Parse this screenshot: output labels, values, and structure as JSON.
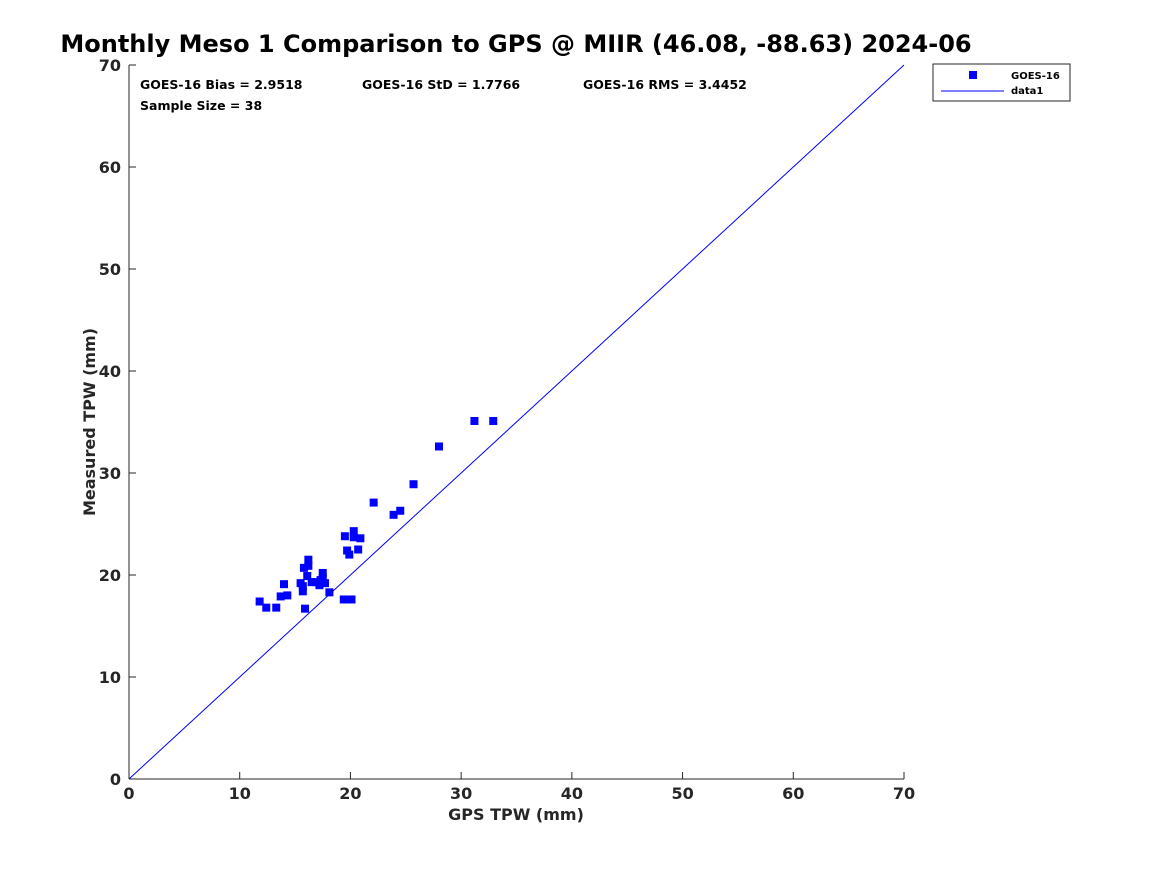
{
  "chart_data": {
    "type": "scatter",
    "title": "Monthly Meso 1 Comparison to GPS @ MIIR (46.08, -88.63) 2024-06",
    "xlabel": "GPS TPW (mm)",
    "ylabel": "Measured TPW (mm)",
    "xlim": [
      0,
      70
    ],
    "ylim": [
      0,
      70
    ],
    "xticks": [
      "0",
      "10",
      "20",
      "30",
      "40",
      "50",
      "60",
      "70"
    ],
    "yticks": [
      "0",
      "10",
      "20",
      "30",
      "40",
      "50",
      "60",
      "70"
    ],
    "grid": false,
    "legend_position": "top-right, outside plot area",
    "stats": [
      "GOES-16 Bias = 2.9518",
      "GOES-16 StD = 1.7766",
      "GOES-16 RMS = 3.4452",
      "Sample Size = 38"
    ],
    "series": [
      {
        "name": "GOES-16",
        "kind": "scatter",
        "marker": "square",
        "color": "#0000ff",
        "points": [
          [
            11.8,
            17.4
          ],
          [
            12.4,
            16.8
          ],
          [
            13.3,
            16.8
          ],
          [
            13.7,
            17.9
          ],
          [
            14.0,
            19.1
          ],
          [
            14.3,
            18.0
          ],
          [
            15.5,
            19.2
          ],
          [
            15.7,
            18.4
          ],
          [
            15.8,
            20.7
          ],
          [
            15.9,
            16.7
          ],
          [
            16.1,
            19.9
          ],
          [
            16.2,
            21.5
          ],
          [
            16.2,
            20.9
          ],
          [
            16.5,
            19.3
          ],
          [
            16.9,
            19.3
          ],
          [
            17.2,
            19.0
          ],
          [
            17.5,
            20.2
          ],
          [
            17.5,
            19.7
          ],
          [
            17.7,
            19.2
          ],
          [
            18.1,
            18.3
          ],
          [
            19.4,
            17.6
          ],
          [
            19.5,
            23.8
          ],
          [
            19.7,
            22.4
          ],
          [
            19.9,
            22.0
          ],
          [
            20.1,
            17.6
          ],
          [
            20.3,
            23.7
          ],
          [
            20.3,
            24.3
          ],
          [
            20.7,
            22.5
          ],
          [
            20.9,
            23.6
          ],
          [
            22.1,
            27.1
          ],
          [
            23.9,
            25.9
          ],
          [
            24.5,
            26.3
          ],
          [
            25.7,
            28.9
          ],
          [
            28.0,
            32.6
          ],
          [
            31.2,
            35.1
          ],
          [
            32.9,
            35.1
          ],
          [
            15.7,
            18.9
          ],
          [
            17.3,
            19.5
          ]
        ]
      },
      {
        "name": "data1",
        "kind": "line",
        "color": "#0000ff",
        "points": [
          [
            0,
            0
          ],
          [
            70,
            70
          ]
        ]
      }
    ]
  }
}
